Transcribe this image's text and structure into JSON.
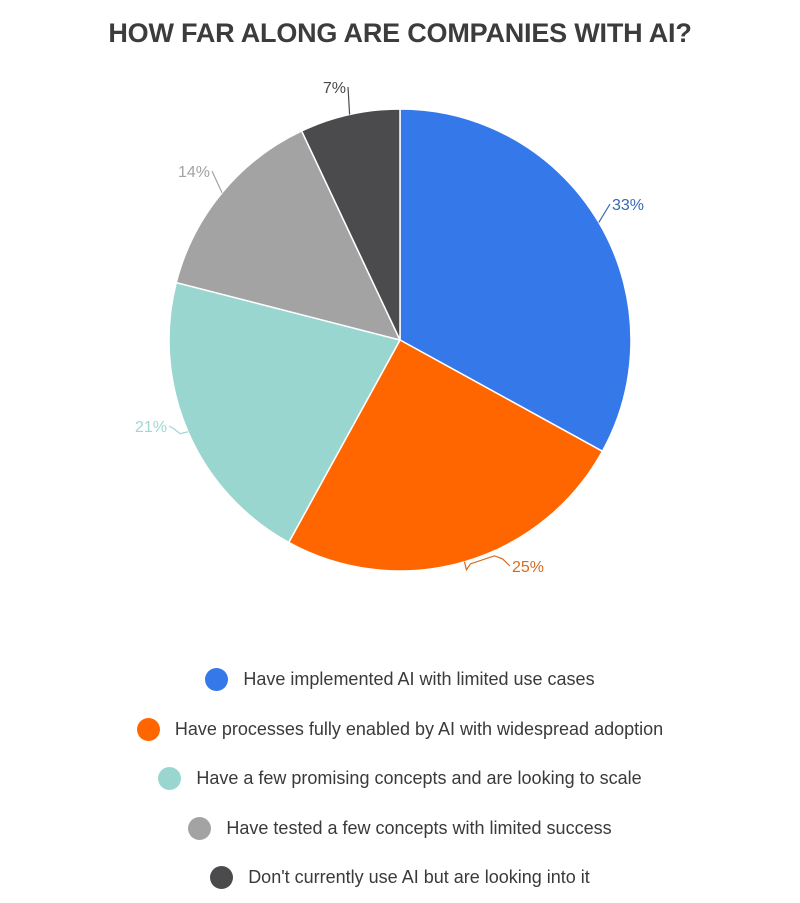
{
  "chart_data": {
    "type": "pie",
    "title": "HOW FAR ALONG ARE COMPANIES WITH AI?",
    "slices": [
      {
        "label": "Have implemented AI with limited use cases",
        "value": 33,
        "value_label": "33%",
        "color": "#3578ea"
      },
      {
        "label": "Have processes fully enabled by AI with widespread adoption",
        "value": 25,
        "value_label": "25%",
        "color": "#ff6600"
      },
      {
        "label": "Have a few promising concepts and are looking to scale",
        "value": 21,
        "value_label": "21%",
        "color": "#9ad6d0"
      },
      {
        "label": "Have tested a few concepts with limited success",
        "value": 14,
        "value_label": "14%",
        "color": "#a3a3a3"
      },
      {
        "label": "Don't currently use AI but are looking into it",
        "value": 7,
        "value_label": "7%",
        "color": "#4b4b4d"
      }
    ],
    "label_colors": [
      "#3567b9",
      "#d86a1c",
      "#9fd8d3",
      "#a3a3a3",
      "#4a4a4a"
    ],
    "legend_position": "bottom",
    "start_angle_deg": 0,
    "direction": "clockwise"
  }
}
